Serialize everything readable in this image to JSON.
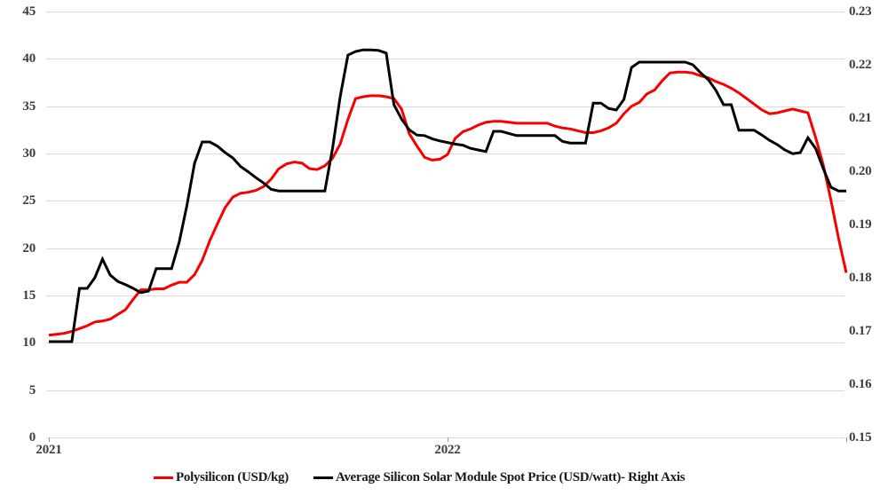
{
  "chart_data": {
    "type": "line",
    "title": "",
    "grid": {
      "horizontal": true,
      "color": "#d9d9d9"
    },
    "legend_position": "bottom",
    "x_axis": {
      "unit": "weekly observations, 2021 through 2022",
      "tick_labels": [
        {
          "label": "2021",
          "week": 0
        },
        {
          "label": "2022",
          "week": 52
        }
      ],
      "minor_tick_weeks": [
        0,
        52,
        104
      ],
      "tick_color": "#999999"
    },
    "left_axis": {
      "min": 0,
      "max": 45,
      "step": 5,
      "tick_labels": [
        "0",
        "5",
        "10",
        "15",
        "20",
        "25",
        "30",
        "35",
        "40",
        "45"
      ]
    },
    "right_axis": {
      "min": 0.15,
      "max": 0.23,
      "step": 0.01,
      "tick_labels": [
        "0.15",
        "0.16",
        "0.17",
        "0.18",
        "0.19",
        "0.20",
        "0.21",
        "0.22",
        "0.23"
      ]
    },
    "series": [
      {
        "key": "polysilicon",
        "name": "Polysilicon (USD/kg)",
        "axis": "left",
        "color": "#f80000",
        "stroke_width": 3,
        "values": [
          10.8,
          10.9,
          11.0,
          11.2,
          11.5,
          11.8,
          12.2,
          12.3,
          12.5,
          13.0,
          13.5,
          14.6,
          15.6,
          15.6,
          15.7,
          15.7,
          16.1,
          16.4,
          16.4,
          17.2,
          18.7,
          20.8,
          22.6,
          24.3,
          25.4,
          25.8,
          25.9,
          26.1,
          26.5,
          27.3,
          28.4,
          28.9,
          29.1,
          29.0,
          28.4,
          28.3,
          28.7,
          29.5,
          31.0,
          33.6,
          35.8,
          36.0,
          36.1,
          36.1,
          36.0,
          35.8,
          34.7,
          32.1,
          30.8,
          29.6,
          29.3,
          29.4,
          29.9,
          31.6,
          32.3,
          32.6,
          33.0,
          33.3,
          33.4,
          33.4,
          33.3,
          33.2,
          33.2,
          33.2,
          33.2,
          33.2,
          32.9,
          32.7,
          32.6,
          32.4,
          32.2,
          32.2,
          32.4,
          32.7,
          33.2,
          34.2,
          35.0,
          35.4,
          36.3,
          36.7,
          37.7,
          38.5,
          38.6,
          38.6,
          38.5,
          38.2,
          38.0,
          37.6,
          37.3,
          36.9,
          36.4,
          35.8,
          35.2,
          34.6,
          34.2,
          34.3,
          34.5,
          34.7,
          34.5,
          34.3,
          31.7,
          28.8,
          25.1,
          21.0,
          17.4
        ]
      },
      {
        "key": "module-spot-price",
        "name": "Average Silicon Solar Module Spot Price (USD/watt)- Right Axis",
        "axis": "right",
        "color": "#000000",
        "stroke_width": 3,
        "values": [
          0.168,
          0.168,
          0.168,
          0.168,
          0.178,
          0.178,
          0.18,
          0.1835,
          0.1805,
          0.1793,
          0.1787,
          0.178,
          0.1772,
          0.1775,
          0.1817,
          0.1817,
          0.1817,
          0.1867,
          0.1935,
          0.2015,
          0.2055,
          0.2055,
          0.2047,
          0.2035,
          0.2025,
          0.2009,
          0.1999,
          0.1988,
          0.1978,
          0.1966,
          0.1963,
          0.1963,
          0.1963,
          0.1963,
          0.1963,
          0.1963,
          0.1963,
          0.2043,
          0.214,
          0.2218,
          0.2225,
          0.2228,
          0.2228,
          0.2227,
          0.2222,
          0.2125,
          0.2098,
          0.2078,
          0.2068,
          0.2067,
          0.2061,
          0.2057,
          0.2054,
          0.2051,
          0.2049,
          0.2043,
          0.204,
          0.2037,
          0.2075,
          0.2075,
          0.2071,
          0.2067,
          0.2067,
          0.2067,
          0.2067,
          0.2067,
          0.2067,
          0.2056,
          0.2053,
          0.2053,
          0.2053,
          0.2128,
          0.2128,
          0.2118,
          0.2115,
          0.2135,
          0.2195,
          0.2205,
          0.2205,
          0.2205,
          0.2205,
          0.2205,
          0.2205,
          0.2205,
          0.22,
          0.2185,
          0.2172,
          0.2152,
          0.2125,
          0.2125,
          0.2077,
          0.2077,
          0.2077,
          0.2068,
          0.2058,
          0.205,
          0.204,
          0.2033,
          0.2035,
          0.2063,
          0.2043,
          0.2005,
          0.197,
          0.1963,
          0.1963
        ]
      }
    ]
  }
}
